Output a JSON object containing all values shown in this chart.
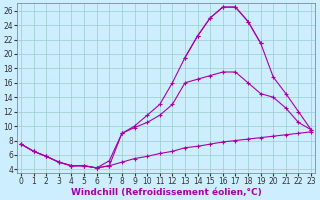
{
  "xlabel": "Windchill (Refroidissement éolien,°C)",
  "background_color": "#cceeff",
  "line_color": "#aa00aa",
  "grid_color": "#99cccc",
  "x": [
    0,
    1,
    2,
    3,
    4,
    5,
    6,
    7,
    8,
    9,
    10,
    11,
    12,
    13,
    14,
    15,
    16,
    17,
    18,
    19,
    20,
    21,
    22,
    23
  ],
  "line_upper": [
    7.5,
    6.5,
    5.8,
    5.0,
    4.5,
    4.5,
    4.2,
    5.2,
    9.0,
    10.0,
    11.5,
    13.0,
    16.0,
    19.5,
    22.5,
    25.0,
    26.5,
    26.5,
    24.5,
    21.5,
    null,
    null,
    null,
    null
  ],
  "line_upper_x": [
    0,
    1,
    2,
    3,
    4,
    5,
    6,
    7,
    8,
    9,
    10,
    11,
    12,
    13,
    14,
    15,
    16,
    17,
    18,
    19
  ],
  "line_upper_y": [
    7.5,
    6.5,
    5.8,
    5.0,
    4.5,
    4.5,
    4.2,
    5.2,
    9.0,
    10.0,
    11.5,
    13.0,
    16.0,
    19.5,
    22.5,
    25.0,
    26.5,
    26.5,
    24.5,
    21.5
  ],
  "line_peak_x": [
    13,
    14,
    15,
    16,
    17,
    18,
    19,
    20,
    21,
    22,
    23
  ],
  "line_peak_y": [
    19.5,
    22.5,
    25.0,
    26.5,
    26.5,
    24.5,
    21.5,
    16.8,
    14.5,
    12.0,
    9.5
  ],
  "line_mid_x": [
    0,
    1,
    2,
    3,
    4,
    5,
    6,
    7,
    8,
    9,
    10,
    11,
    12,
    13,
    14,
    15,
    16,
    17,
    18,
    19,
    20,
    21,
    22,
    23
  ],
  "line_mid_y": [
    7.5,
    6.5,
    5.8,
    5.0,
    4.5,
    4.5,
    4.2,
    4.5,
    9.0,
    9.8,
    10.5,
    11.5,
    13.0,
    16.0,
    16.5,
    17.0,
    17.5,
    17.5,
    16.0,
    14.5,
    14.0,
    12.5,
    10.5,
    9.5
  ],
  "line_low_x": [
    0,
    1,
    2,
    3,
    4,
    5,
    6,
    7,
    8,
    9,
    10,
    11,
    12,
    13,
    14,
    15,
    16,
    17,
    18,
    19,
    20,
    21,
    22,
    23
  ],
  "line_low_y": [
    7.5,
    6.5,
    5.8,
    5.0,
    4.5,
    4.5,
    4.2,
    4.5,
    5.0,
    5.5,
    5.8,
    6.2,
    6.5,
    7.0,
    7.2,
    7.5,
    7.8,
    8.0,
    8.2,
    8.4,
    8.6,
    8.8,
    9.0,
    9.2
  ],
  "ylim": [
    3.5,
    27
  ],
  "xlim": [
    -0.3,
    23.3
  ],
  "yticks": [
    4,
    6,
    8,
    10,
    12,
    14,
    16,
    18,
    20,
    22,
    24,
    26
  ],
  "xticks": [
    0,
    1,
    2,
    3,
    4,
    5,
    6,
    7,
    8,
    9,
    10,
    11,
    12,
    13,
    14,
    15,
    16,
    17,
    18,
    19,
    20,
    21,
    22,
    23
  ],
  "tick_fontsize": 5.5,
  "xlabel_fontsize": 6.5
}
